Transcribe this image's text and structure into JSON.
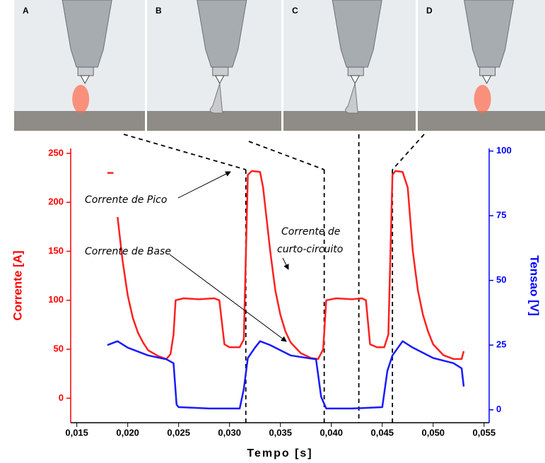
{
  "panels": [
    "A",
    "B",
    "C",
    "D"
  ],
  "chart_data": {
    "type": "line",
    "xlabel": "Tempo [s]",
    "ylabel": "Corrente [A]",
    "y2label": "Tensao [V]",
    "xlim": [
      0.0144,
      0.0555
    ],
    "ylim": [
      -25,
      255
    ],
    "y2lim": [
      -5,
      101
    ],
    "xticks": [
      {
        "value": 0.015,
        "label": "0,015"
      },
      {
        "value": 0.02,
        "label": "0,020"
      },
      {
        "value": 0.025,
        "label": "0,025"
      },
      {
        "value": 0.03,
        "label": "0,030"
      },
      {
        "value": 0.035,
        "label": "0,035"
      },
      {
        "value": 0.04,
        "label": "0,040"
      },
      {
        "value": 0.045,
        "label": "0,045"
      },
      {
        "value": 0.05,
        "label": "0,050"
      },
      {
        "value": 0.055,
        "label": "0,055"
      }
    ],
    "yticks": [
      0,
      50,
      100,
      150,
      200,
      250
    ],
    "y2ticks": [
      0,
      25,
      50,
      75,
      100
    ],
    "ycolor": "#ff0000",
    "y2color": "#0000ff",
    "vlines": [
      0.0316,
      0.0393,
      0.0427,
      0.046
    ],
    "annotations": [
      "Corrente de Pico",
      "Corrente de  Base",
      "Corrente de",
      "curto-circuito"
    ],
    "series": [
      {
        "color": "#ff2020",
        "axis": "y",
        "x": [
          0.018,
          0.0186,
          0.0187,
          0.019,
          0.0195,
          0.02,
          0.0205,
          0.021,
          0.0215,
          0.022,
          0.023,
          0.0238,
          0.0242,
          0.0245,
          0.0247,
          0.0255,
          0.027,
          0.0285,
          0.029,
          0.0295,
          0.03,
          0.031,
          0.0314,
          0.0318,
          0.0322,
          0.033,
          0.0333,
          0.034,
          0.0345,
          0.035,
          0.0355,
          0.036,
          0.037,
          0.038,
          0.0387,
          0.0392,
          0.0395,
          0.0405,
          0.042,
          0.043,
          0.0434,
          0.0438,
          0.0445,
          0.0452,
          0.0456,
          0.046,
          0.0463,
          0.047,
          0.0475,
          0.048,
          0.0485,
          0.049,
          0.0495,
          0.05,
          0.051,
          0.052,
          0.0528,
          0.053
        ],
        "values": [
          230,
          230,
          null,
          185,
          140,
          105,
          82,
          67,
          57,
          49,
          43,
          40,
          45,
          65,
          100,
          102,
          101,
          102,
          100,
          55,
          52,
          52,
          60,
          228,
          232,
          231,
          215,
          150,
          110,
          85,
          68,
          57,
          46,
          41,
          40,
          50,
          100,
          102,
          101,
          102,
          100,
          55,
          52,
          52,
          65,
          228,
          232,
          231,
          215,
          150,
          110,
          85,
          68,
          55,
          44,
          40,
          40,
          48
        ]
      },
      {
        "color": "#1a1aff",
        "axis": "y2",
        "x": [
          0.018,
          0.019,
          0.02,
          0.022,
          0.0238,
          0.0245,
          0.0248,
          0.025,
          0.028,
          0.031,
          0.0314,
          0.0318,
          0.0325,
          0.033,
          0.034,
          0.036,
          0.0385,
          0.039,
          0.0395,
          0.042,
          0.045,
          0.0455,
          0.046,
          0.047,
          0.048,
          0.05,
          0.052,
          0.0528,
          0.053
        ],
        "values": [
          25,
          26.5,
          24,
          21,
          19.5,
          18,
          2,
          1,
          0.5,
          0.5,
          8,
          20,
          24,
          26.5,
          25,
          21,
          19.5,
          5,
          0.5,
          0.5,
          1,
          15,
          21,
          26.5,
          24,
          20,
          18,
          16,
          9
        ]
      }
    ]
  }
}
